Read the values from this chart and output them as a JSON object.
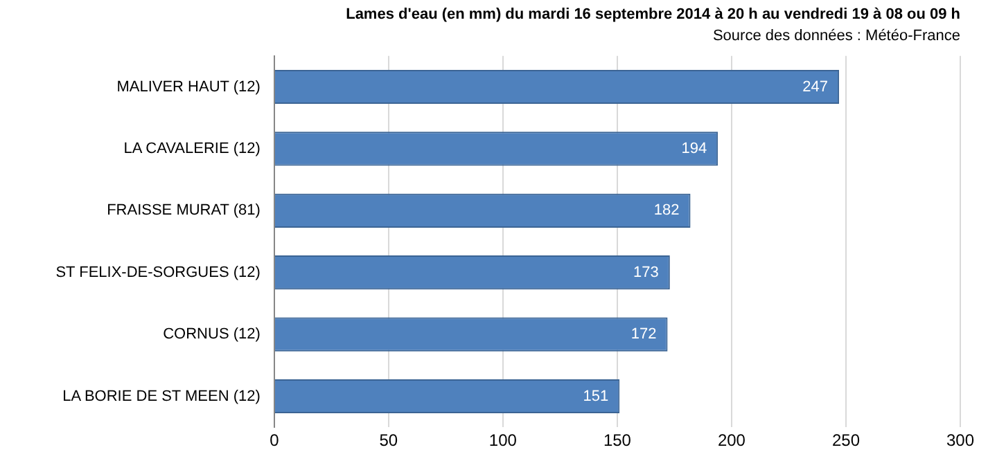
{
  "chart_data": {
    "type": "bar",
    "orientation": "horizontal",
    "title": "Lames d'eau (en mm) du mardi 16 septembre 2014 à 20 h au vendredi 19 à 08 ou 09 h",
    "subtitle": "Source des données : Météo-France",
    "categories": [
      "MALIVER HAUT (12)",
      "LA CAVALERIE (12)",
      "FRAISSE MURAT (81)",
      "ST FELIX-DE-SORGUES (12)",
      "CORNUS (12)",
      "LA BORIE DE ST MEEN (12)"
    ],
    "values": [
      247,
      194,
      182,
      173,
      172,
      151
    ],
    "color": "#4f81bd",
    "xlim": [
      0,
      300
    ],
    "xticks": [
      0,
      50,
      100,
      150,
      200,
      250,
      300
    ],
    "grid": "x",
    "legend": false,
    "data_labels": true
  }
}
